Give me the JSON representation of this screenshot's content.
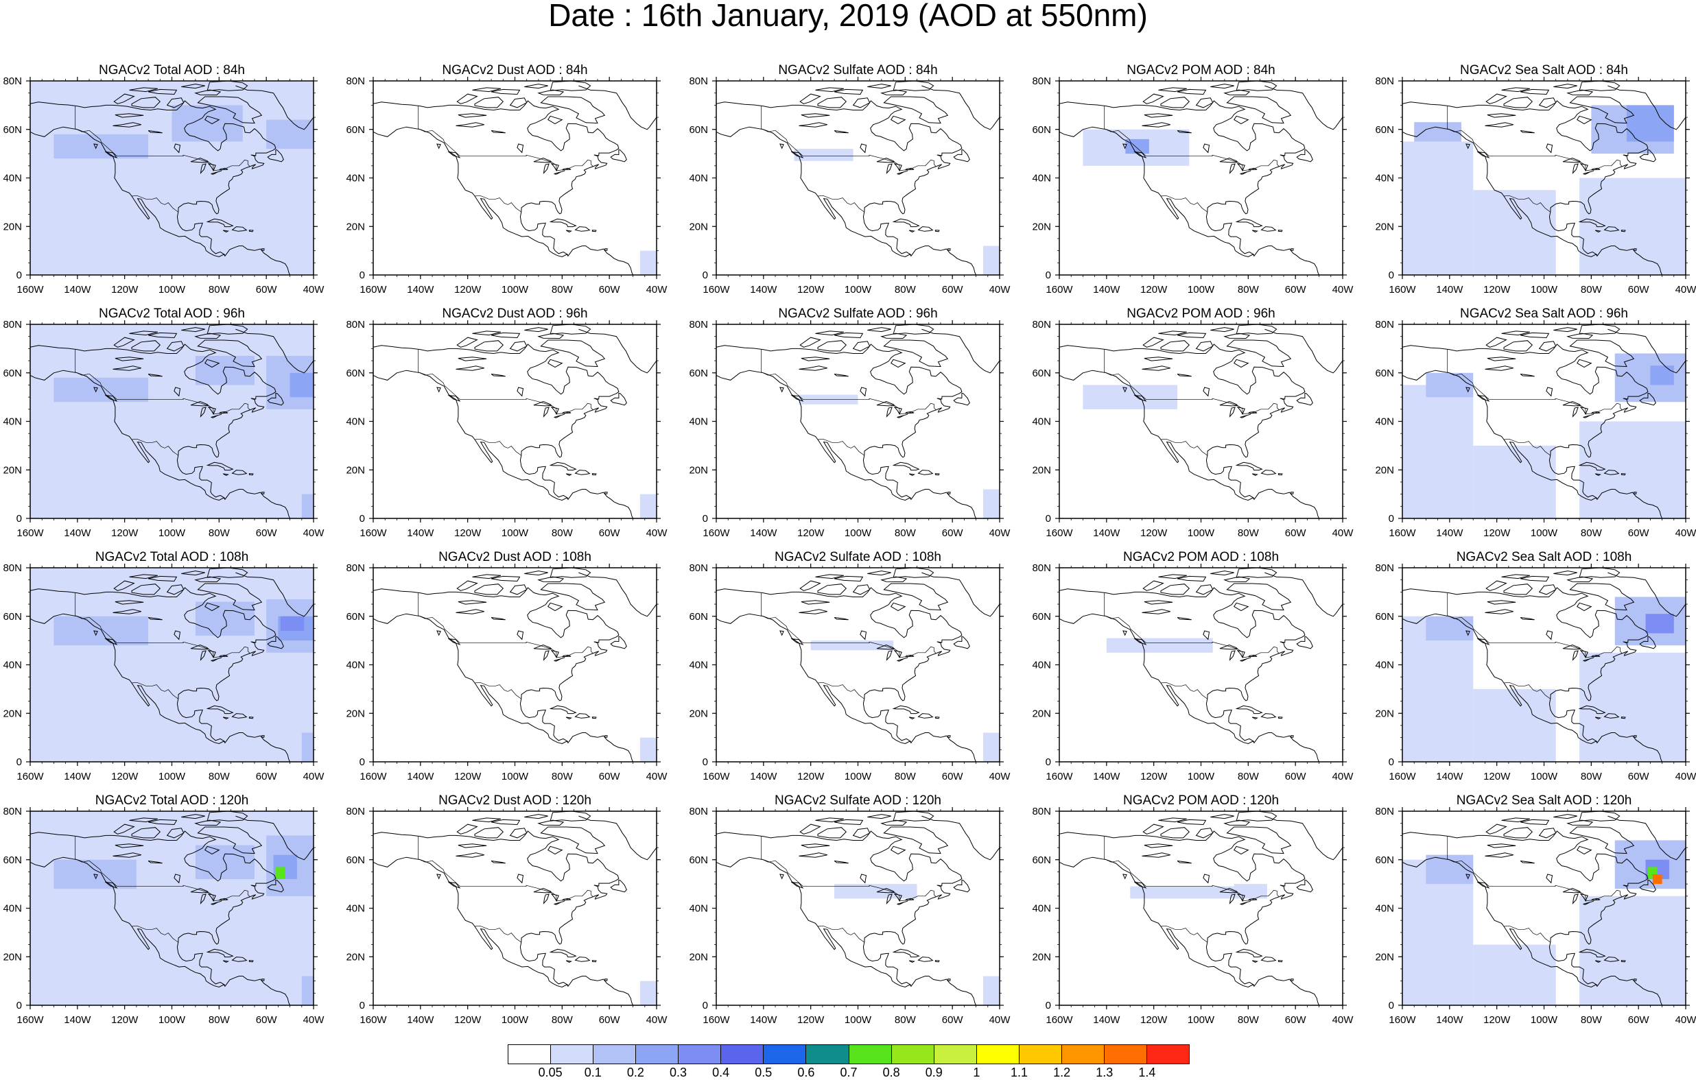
{
  "title": "Date : 16th January, 2019 (AOD at 550nm)",
  "colors": {
    "coast": "#000000",
    "land_fill": "none"
  },
  "colorbar": {
    "labels": [
      "0.05",
      "0.1",
      "0.2",
      "0.3",
      "0.4",
      "0.5",
      "0.6",
      "0.7",
      "0.8",
      "0.9",
      "1",
      "1.1",
      "1.2",
      "1.3",
      "1.4"
    ],
    "colors": [
      "#ffffff",
      "#d3dcfa",
      "#b2c2f6",
      "#8ca6f5",
      "#7c8ef4",
      "#5a64ec",
      "#1c66ec",
      "#0f8c8c",
      "#58e31c",
      "#96e61c",
      "#c8f03c",
      "#ffff00",
      "#ffc800",
      "#ff9600",
      "#ff6e00",
      "#ff2814"
    ]
  },
  "map": {
    "lon_ticks": [
      "160W",
      "140W",
      "120W",
      "100W",
      "80W",
      "60W",
      "40W"
    ],
    "lat_ticks": [
      "0",
      "20N",
      "40N",
      "60N",
      "80N"
    ]
  },
  "panels": [
    {
      "title": "NGACv2 Total AOD : 84h",
      "field": "total",
      "level": 0
    },
    {
      "title": "NGACv2 Dust AOD : 84h",
      "field": "dust",
      "level": 0
    },
    {
      "title": "NGACv2 Sulfate AOD : 84h",
      "field": "sulfate",
      "level": 0
    },
    {
      "title": "NGACv2 POM AOD : 84h",
      "field": "pom",
      "level": 0
    },
    {
      "title": "NGACv2 Sea Salt AOD : 84h",
      "field": "seasalt",
      "level": 0
    },
    {
      "title": "NGACv2 Total AOD : 96h",
      "field": "total",
      "level": 1
    },
    {
      "title": "NGACv2 Dust AOD : 96h",
      "field": "dust",
      "level": 1
    },
    {
      "title": "NGACv2 Sulfate AOD : 96h",
      "field": "sulfate",
      "level": 1
    },
    {
      "title": "NGACv2 POM AOD : 96h",
      "field": "pom",
      "level": 1
    },
    {
      "title": "NGACv2 Sea Salt AOD : 96h",
      "field": "seasalt",
      "level": 1
    },
    {
      "title": "NGACv2 Total AOD : 108h",
      "field": "total",
      "level": 2
    },
    {
      "title": "NGACv2 Dust AOD : 108h",
      "field": "dust",
      "level": 2
    },
    {
      "title": "NGACv2 Sulfate AOD : 108h",
      "field": "sulfate",
      "level": 2
    },
    {
      "title": "NGACv2 POM AOD : 108h",
      "field": "pom",
      "level": 2
    },
    {
      "title": "NGACv2 Sea Salt AOD : 108h",
      "field": "seasalt",
      "level": 2
    },
    {
      "title": "NGACv2 Total AOD : 120h",
      "field": "total",
      "level": 3
    },
    {
      "title": "NGACv2 Dust AOD : 120h",
      "field": "dust",
      "level": 3
    },
    {
      "title": "NGACv2 Sulfate AOD : 120h",
      "field": "sulfate",
      "level": 3
    },
    {
      "title": "NGACv2 POM AOD : 120h",
      "field": "pom",
      "level": 3
    },
    {
      "title": "NGACv2 Sea Salt  AOD : 120h",
      "field": "seasalt",
      "level": 3
    }
  ]
}
